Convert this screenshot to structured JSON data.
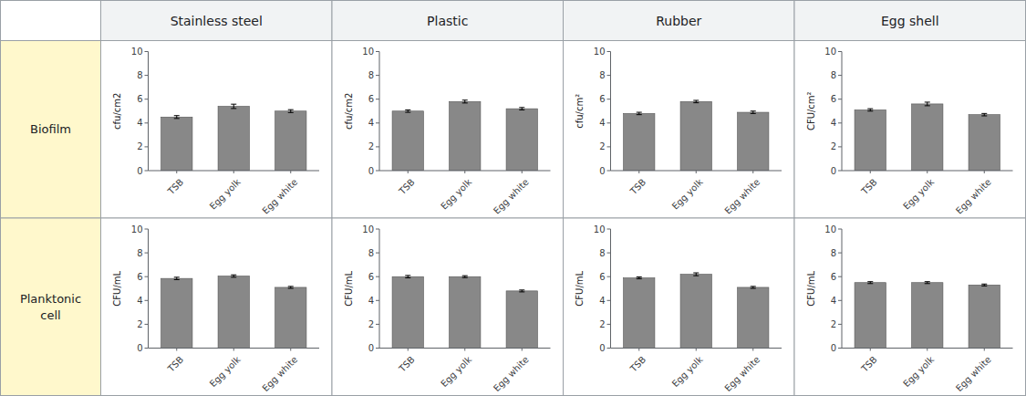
{
  "col_headers": [
    "Stainless steel",
    "Plastic",
    "Rubber",
    "Egg shell"
  ],
  "row_headers": [
    "Biofilm",
    "Planktonic\ncell"
  ],
  "chart_data": [
    {
      "type": "bar",
      "categories": [
        "TSB",
        "Egg yolk",
        "Egg white"
      ],
      "values": [
        4.5,
        5.4,
        5.0
      ],
      "errors": [
        0.12,
        0.18,
        0.12
      ],
      "y_label": "cfu/cm2",
      "color": "#888888",
      "ylim": [
        0,
        10
      ],
      "yticks": [
        0,
        2,
        4,
        6,
        8,
        10
      ],
      "grid": false
    },
    {
      "type": "bar",
      "categories": [
        "TSB",
        "Egg yolk",
        "Egg white"
      ],
      "values": [
        5.0,
        5.8,
        5.2
      ],
      "errors": [
        0.1,
        0.12,
        0.1
      ],
      "y_label": "cfu/cm2",
      "color": "#888888",
      "ylim": [
        0,
        10
      ],
      "yticks": [
        0,
        2,
        4,
        6,
        8,
        10
      ],
      "grid": false
    },
    {
      "type": "bar",
      "categories": [
        "TSB",
        "Egg yolk",
        "Egg white"
      ],
      "values": [
        4.8,
        5.8,
        4.9
      ],
      "errors": [
        0.1,
        0.1,
        0.1
      ],
      "y_label": "cfu/cm²",
      "color": "#888888",
      "ylim": [
        0,
        10
      ],
      "yticks": [
        0,
        2,
        4,
        6,
        8,
        10
      ],
      "grid": false
    },
    {
      "type": "bar",
      "categories": [
        "TSB",
        "Egg yolk",
        "Egg white"
      ],
      "values": [
        5.1,
        5.6,
        4.7
      ],
      "errors": [
        0.1,
        0.15,
        0.1
      ],
      "y_label": "CFU/cm²",
      "color": "#888888",
      "ylim": [
        0,
        10
      ],
      "yticks": [
        0,
        2,
        4,
        6,
        8,
        10
      ],
      "grid": false
    },
    {
      "type": "bar",
      "categories": [
        "TSB",
        "Egg yolk",
        "Egg white"
      ],
      "values": [
        5.85,
        6.05,
        5.1
      ],
      "errors": [
        0.1,
        0.1,
        0.08
      ],
      "y_label": "CFU/mL",
      "color": "#888888",
      "ylim": [
        0,
        10
      ],
      "yticks": [
        0,
        2,
        4,
        6,
        8,
        10
      ],
      "grid": false
    },
    {
      "type": "bar",
      "categories": [
        "TSB",
        "Egg yolk",
        "Egg white"
      ],
      "values": [
        6.0,
        6.0,
        4.8
      ],
      "errors": [
        0.1,
        0.08,
        0.08
      ],
      "y_label": "CFU/mL",
      "color": "#888888",
      "ylim": [
        0,
        10
      ],
      "yticks": [
        0,
        2,
        4,
        6,
        8,
        10
      ],
      "grid": false
    },
    {
      "type": "bar",
      "categories": [
        "TSB",
        "Egg yolk",
        "Egg white"
      ],
      "values": [
        5.9,
        6.2,
        5.1
      ],
      "errors": [
        0.08,
        0.12,
        0.08
      ],
      "y_label": "CFU/mL",
      "color": "#888888",
      "ylim": [
        0,
        10
      ],
      "yticks": [
        0,
        2,
        4,
        6,
        8,
        10
      ],
      "grid": false
    },
    {
      "type": "bar",
      "categories": [
        "TSB",
        "Egg yolk",
        "Egg white"
      ],
      "values": [
        5.5,
        5.5,
        5.3
      ],
      "errors": [
        0.08,
        0.08,
        0.08
      ],
      "y_label": "CFU/mL",
      "color": "#888888",
      "ylim": [
        0,
        10
      ],
      "yticks": [
        0,
        2,
        4,
        6,
        8,
        10
      ],
      "grid": false
    }
  ]
}
